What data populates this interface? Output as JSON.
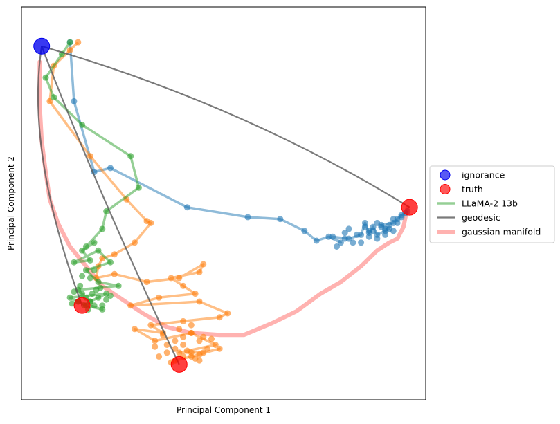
{
  "chart_data": {
    "type": "scatter",
    "title": "",
    "xlabel": "Principal Component 1",
    "ylabel": "Principal Component 2",
    "xlim": [
      0,
      100
    ],
    "ylim": [
      0,
      100
    ],
    "ticks_visible": false,
    "grid": false,
    "legend_placement": "center-right-outside",
    "legend": [
      {
        "label": "ignorance",
        "kind": "marker",
        "color": "#0000ee"
      },
      {
        "label": "truth",
        "kind": "marker",
        "color": "#ff0000"
      },
      {
        "label": "LLaMA-2 13b",
        "kind": "line",
        "color": "#2ca02c"
      },
      {
        "label": "geodesic",
        "kind": "line",
        "color": "#7f7f7f"
      },
      {
        "label": "gaussian manifold",
        "kind": "line",
        "color": "#ff9896"
      }
    ],
    "ignorance_point": {
      "x": 5,
      "y": 90
    },
    "truth_points": [
      {
        "x": 15,
        "y": 24
      },
      {
        "x": 39,
        "y": 9
      },
      {
        "x": 96,
        "y": 49
      }
    ],
    "geodesics": [
      {
        "from": [
          5,
          90
        ],
        "to": [
          15,
          24
        ],
        "bend": [
          1,
          63
        ]
      },
      {
        "from": [
          5,
          90
        ],
        "to": [
          39,
          9
        ],
        "bend": [
          18,
          55
        ]
      },
      {
        "from": [
          5,
          90
        ],
        "to": [
          96,
          49
        ],
        "bend": [
          55,
          75
        ]
      }
    ],
    "gaussian_manifold": {
      "x": [
        4.5,
        4.5,
        5,
        6,
        7,
        9,
        12,
        16,
        20,
        25,
        30,
        36,
        42,
        49,
        55,
        62,
        68,
        74,
        79,
        84,
        88,
        91,
        93,
        94.5,
        95.5
      ],
      "y": [
        86,
        75,
        66,
        58,
        51,
        45,
        39,
        34,
        29,
        25.5,
        22,
        18.5,
        17,
        16.5,
        16.5,
        19.5,
        22.5,
        27,
        30,
        34,
        38,
        40,
        41,
        44,
        49
      ]
    },
    "series": [
      {
        "color": "#1f77b4",
        "x": [
          12,
          13,
          18,
          22,
          41,
          56,
          64,
          70,
          73,
          76,
          79,
          77,
          81,
          84,
          85,
          86,
          87,
          88,
          90,
          91,
          89,
          92,
          93,
          94,
          95,
          95.5
        ],
        "y": [
          91,
          76,
          58,
          59,
          49,
          46.5,
          46,
          43,
          40.5,
          41.5,
          40,
          41.5,
          41,
          42,
          45,
          42.5,
          44,
          42,
          43,
          43.5,
          44.5,
          45,
          46,
          47,
          47.5,
          48
        ],
        "extra_points": {
          "x": [
            78,
            80,
            82,
            83,
            85,
            86,
            87,
            88,
            89,
            90,
            91,
            92,
            93,
            84,
            86,
            88,
            90,
            92,
            94,
            80,
            81
          ],
          "y": [
            39,
            41,
            40,
            42,
            44,
            41.5,
            43,
            41,
            44,
            42,
            44.5,
            43,
            45,
            40,
            43,
            45,
            43.5,
            46,
            46.5,
            42.5,
            43.5
          ]
        }
      },
      {
        "color": "#ff7f0e",
        "x": [
          14,
          12,
          8,
          7,
          17,
          26,
          31,
          32,
          28,
          23,
          20,
          19,
          18.5,
          23,
          31,
          39,
          45,
          44,
          37,
          40,
          43,
          34,
          27,
          44,
          51,
          49,
          40,
          32,
          35,
          28,
          33,
          42,
          48,
          39,
          45,
          49,
          42,
          38
        ],
        "y": [
          91,
          89,
          85,
          76,
          62,
          51,
          45.5,
          45,
          40,
          37,
          36,
          34,
          31,
          32,
          30,
          31,
          34.5,
          32.5,
          31,
          29,
          27,
          26,
          24,
          25,
          22,
          21,
          20,
          19,
          17,
          18,
          15,
          17,
          14,
          12,
          12,
          13,
          11,
          10
        ],
        "extra_points": {
          "x": [
            34,
            36,
            38,
            40,
            42,
            44,
            46,
            38,
            40,
            42,
            44,
            36,
            40,
            43,
            37,
            41,
            45,
            39,
            47,
            33,
            35,
            42,
            44
          ],
          "y": [
            11,
            12,
            13,
            14,
            12,
            11.5,
            13,
            15,
            16,
            17,
            15,
            14,
            11,
            10.5,
            9.5,
            12.5,
            16,
            18,
            15.5,
            13.5,
            16.5,
            19,
            10
          ]
        }
      },
      {
        "color": "#2ca02c",
        "x": [
          12,
          10,
          6,
          8,
          15,
          27,
          29,
          21,
          20,
          16,
          18,
          15,
          17,
          13,
          19,
          22,
          16,
          19,
          24,
          14,
          17,
          21,
          12,
          16,
          20,
          14
        ],
        "y": [
          91,
          88,
          82,
          77,
          70,
          62,
          54,
          48,
          43.5,
          39,
          40,
          38,
          35.5,
          35,
          38,
          35,
          33,
          30,
          29,
          28,
          25,
          27,
          26,
          24,
          23,
          25
        ],
        "extra_points": {
          "x": [
            15,
            16,
            17,
            18,
            19,
            14,
            15.5,
            17.5,
            18.5,
            16.5,
            13,
            20,
            21,
            14.5,
            19.5,
            12.5,
            22,
            17,
            15,
            18
          ],
          "y": [
            27,
            26,
            25,
            24,
            26,
            25,
            24,
            27,
            28,
            23,
            27.5,
            24,
            25.5,
            29,
            28.5,
            24.5,
            26.5,
            31,
            31.5,
            33
          ]
        }
      }
    ]
  }
}
